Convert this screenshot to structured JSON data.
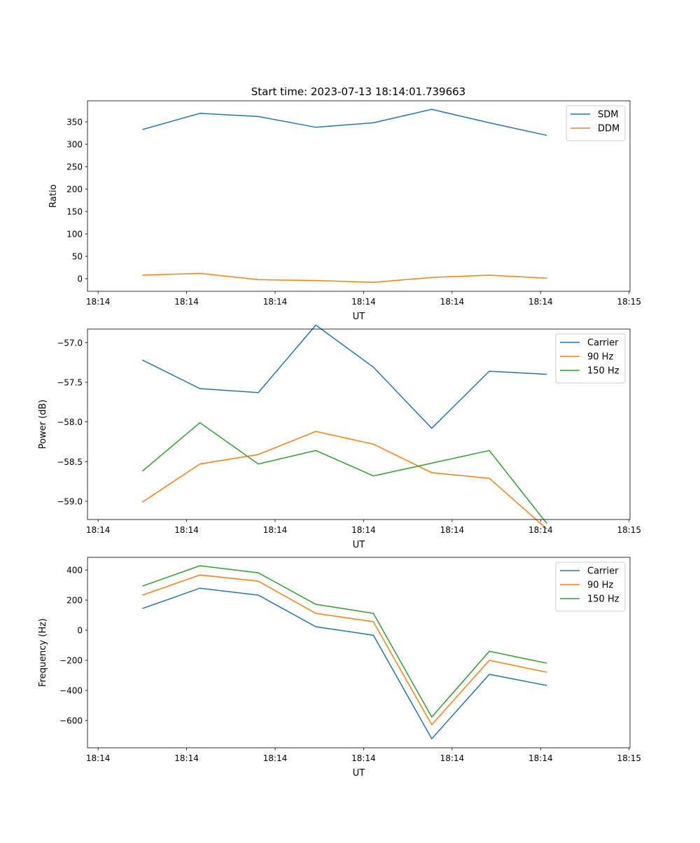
{
  "figure_title": "Start time: 2023-07-13 18:14:01.739663",
  "colors": {
    "c0": "#1f77b4",
    "c1": "#ff7f0e",
    "c2": "#2ca02c"
  },
  "chart_data": [
    {
      "type": "line",
      "title": "Start time: 2023-07-13 18:14:01.739663",
      "xlabel": "UT",
      "ylabel": "Ratio",
      "x_unit": "seconds after 18:14:00",
      "x": [
        5.0,
        11.5,
        18.1,
        24.6,
        31.1,
        37.7,
        44.2,
        50.7
      ],
      "xlim": [
        -1.2,
        60.1
      ],
      "xticks": [
        0,
        10,
        20,
        30,
        40,
        50,
        60
      ],
      "xtick_labels": [
        "18:14",
        "18:14",
        "18:14",
        "18:14",
        "18:14",
        "18:14",
        "18:15"
      ],
      "ylim": [
        -28,
        397
      ],
      "yticks": [
        0,
        50,
        100,
        150,
        200,
        250,
        300,
        350
      ],
      "ytick_labels": [
        "0",
        "50",
        "100",
        "150",
        "200",
        "250",
        "300",
        "350"
      ],
      "legend_position": "top-right",
      "series": [
        {
          "name": "SDM",
          "color": "#1f77b4",
          "values": [
            333,
            369,
            362,
            338,
            348,
            378,
            348,
            320
          ]
        },
        {
          "name": "DDM",
          "color": "#ff7f0e",
          "values": [
            8,
            12,
            -2,
            -4,
            -8,
            3,
            8,
            1
          ]
        }
      ]
    },
    {
      "type": "line",
      "xlabel": "UT",
      "ylabel": "Power (dB)",
      "x_unit": "seconds after 18:14:00",
      "x": [
        5.0,
        11.5,
        18.1,
        24.6,
        31.1,
        37.7,
        44.2,
        50.7
      ],
      "xlim": [
        -1.2,
        60.1
      ],
      "xticks": [
        0,
        10,
        20,
        30,
        40,
        50,
        60
      ],
      "xtick_labels": [
        "18:14",
        "18:14",
        "18:14",
        "18:14",
        "18:14",
        "18:14",
        "18:15"
      ],
      "ylim": [
        -59.23,
        -56.83
      ],
      "yticks": [
        -59.0,
        -58.5,
        -58.0,
        -57.5,
        -57.0
      ],
      "ytick_labels": [
        "−59.0",
        "−58.5",
        "−58.0",
        "−57.5",
        "−57.0"
      ],
      "legend_position": "top-right",
      "series": [
        {
          "name": "Carrier",
          "color": "#1f77b4",
          "values": [
            -57.22,
            -57.58,
            -57.63,
            -56.78,
            -57.31,
            -58.08,
            -57.36,
            -57.4
          ]
        },
        {
          "name": "90 Hz",
          "color": "#ff7f0e",
          "values": [
            -59.01,
            -58.53,
            -58.41,
            -58.12,
            -58.28,
            -58.64,
            -58.71,
            -59.35
          ]
        },
        {
          "name": "150 Hz",
          "color": "#2ca02c",
          "values": [
            -58.62,
            -58.01,
            -58.53,
            -58.36,
            -58.68,
            -58.52,
            -58.36,
            -59.28
          ]
        }
      ]
    },
    {
      "type": "line",
      "xlabel": "UT",
      "ylabel": "Frequency (Hz)",
      "x_unit": "seconds after 18:14:00",
      "x": [
        5.0,
        11.5,
        18.1,
        24.6,
        31.1,
        37.7,
        44.2,
        50.7
      ],
      "xlim": [
        -1.2,
        60.1
      ],
      "xticks": [
        0,
        10,
        20,
        30,
        40,
        50,
        60
      ],
      "xtick_labels": [
        "18:14",
        "18:14",
        "18:14",
        "18:14",
        "18:14",
        "18:14",
        "18:15"
      ],
      "ylim": [
        -781,
        484
      ],
      "yticks": [
        -600,
        -400,
        -200,
        0,
        200,
        400
      ],
      "ytick_labels": [
        "−600",
        "−400",
        "−200",
        "0",
        "200",
        "400"
      ],
      "legend_position": "top-right",
      "series": [
        {
          "name": "Carrier",
          "color": "#1f77b4",
          "values": [
            144,
            279,
            233,
            23,
            -33,
            -721,
            -293,
            -367
          ]
        },
        {
          "name": "90 Hz",
          "color": "#ff7f0e",
          "values": [
            233,
            367,
            326,
            112,
            56,
            -628,
            -200,
            -279
          ]
        },
        {
          "name": "150 Hz",
          "color": "#2ca02c",
          "values": [
            293,
            428,
            381,
            172,
            112,
            -577,
            -140,
            -219
          ]
        }
      ]
    }
  ]
}
